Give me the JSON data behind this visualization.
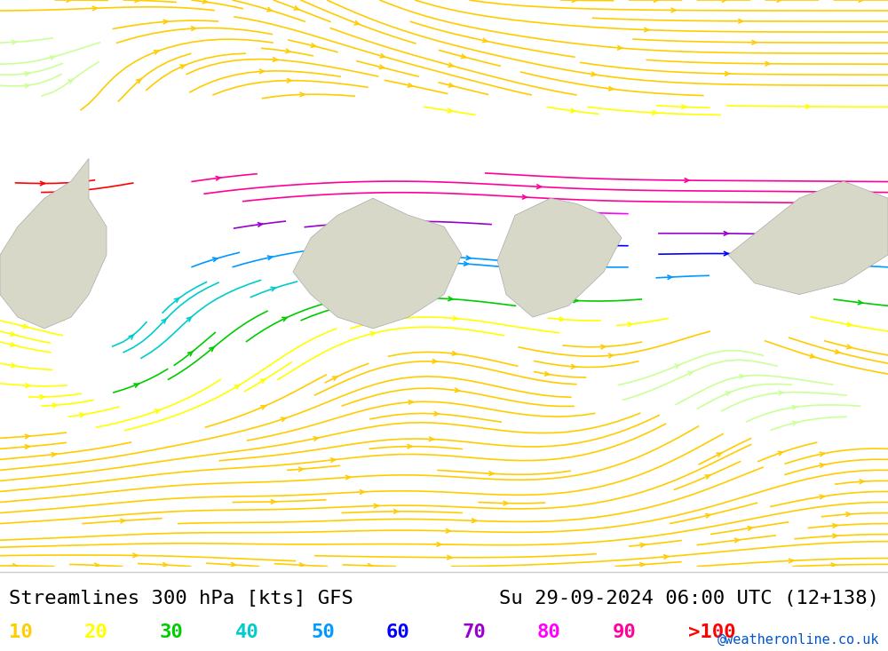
{
  "title_left": "Streamlines 300 hPa [kts] GFS",
  "title_right": "Su 29-09-2024 06:00 UTC (12+138)",
  "watermark": "@weatheronline.co.uk",
  "background_map": "#b3e6b3",
  "border_color": "#aaaaaa",
  "legend_values": [
    "10",
    "20",
    "30",
    "40",
    "50",
    "60",
    "70",
    "80",
    "90",
    ">100"
  ],
  "legend_colors": [
    "#ffcc00",
    "#ffff00",
    "#00cc00",
    "#00cccc",
    "#0099ff",
    "#0000ff",
    "#9900cc",
    "#ff00ff",
    "#ff0099",
    "#ff0000"
  ],
  "bottom_bar_color": "#ffffff",
  "title_fontsize": 16,
  "legend_fontsize": 16,
  "watermark_fontsize": 11,
  "fig_width": 10.0,
  "fig_height": 7.33,
  "streamline_linewidth": 1.2,
  "cmap_colors": [
    "#ccff99",
    "#ffcc00",
    "#ffff00",
    "#00cc00",
    "#00cccc",
    "#0099ff",
    "#0000ff",
    "#9900cc",
    "#ff00ff",
    "#ff0099",
    "#ff0000"
  ],
  "bounds": [
    0,
    10,
    20,
    30,
    40,
    50,
    60,
    70,
    80,
    90,
    100,
    120
  ]
}
